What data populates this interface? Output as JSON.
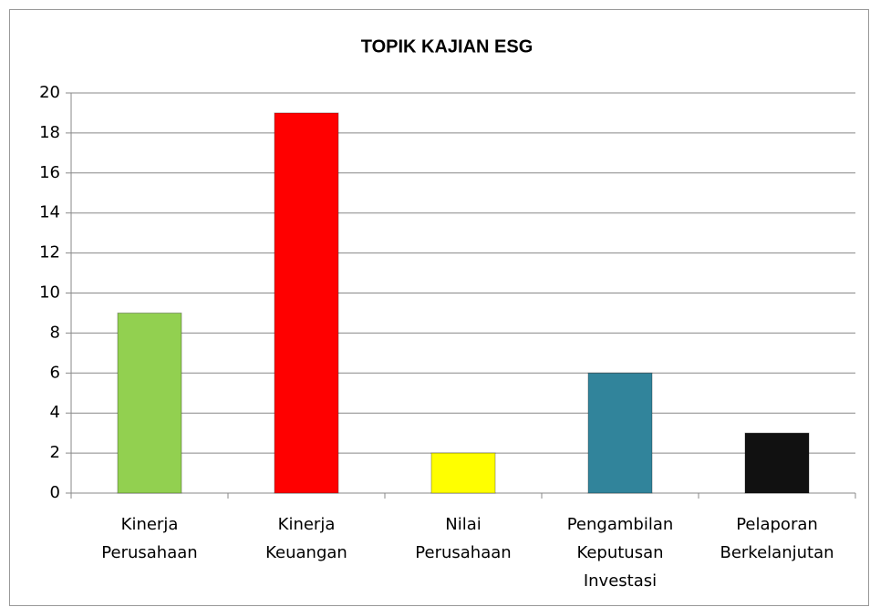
{
  "chart_data": {
    "type": "bar",
    "title": "TOPIK KAJIAN ESG",
    "categories": [
      [
        "Kinerja",
        "Perusahaan"
      ],
      [
        "Kinerja",
        "Keuangan"
      ],
      [
        "Nilai",
        "Perusahaan"
      ],
      [
        "Pengambilan",
        "Keputusan",
        "Investasi"
      ],
      [
        "Pelaporan",
        "Berkelanjutan"
      ]
    ],
    "values": [
      9,
      19,
      2,
      6,
      3
    ],
    "colors": [
      "#92d050",
      "#ff0000",
      "#ffff00",
      "#31849b",
      "#111111"
    ],
    "ylim": [
      0,
      20
    ],
    "yticks": [
      0,
      2,
      4,
      6,
      8,
      10,
      12,
      14,
      16,
      18,
      20
    ],
    "grid": true
  }
}
